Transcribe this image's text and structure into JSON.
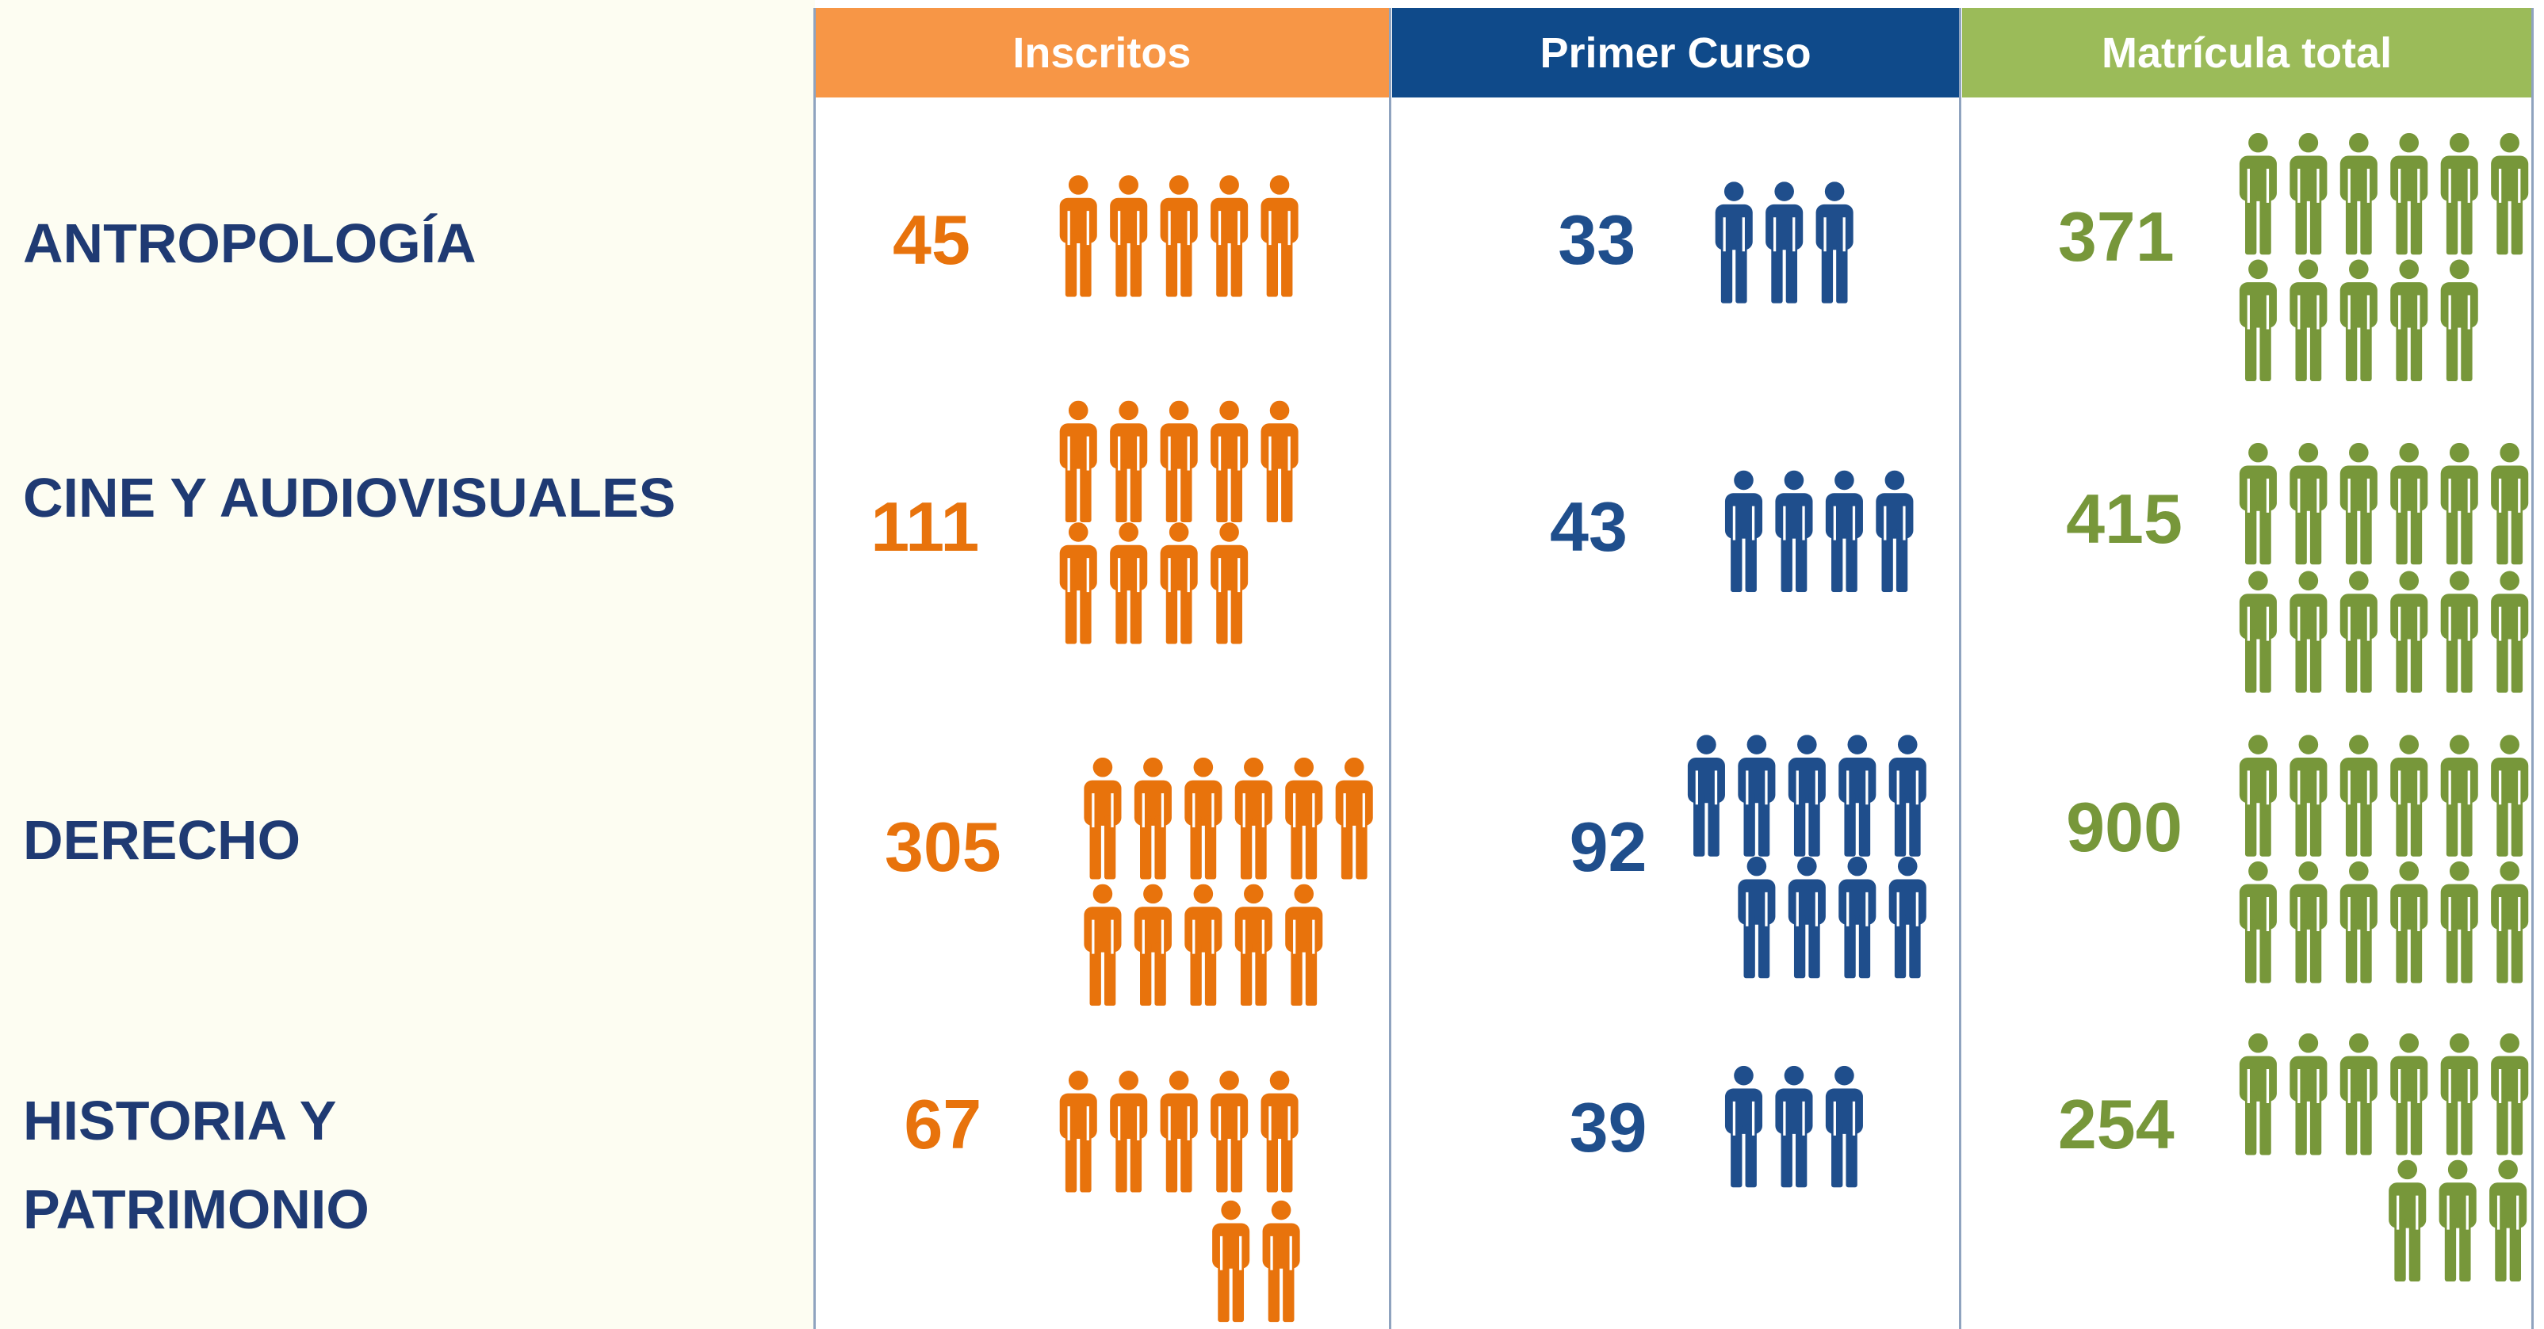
{
  "columns": [
    "Inscritos",
    "Primer Curso",
    "Matrícula total"
  ],
  "rows": [
    {
      "label": "ANTROPOLOGÍA",
      "values": [
        45,
        33,
        371
      ]
    },
    {
      "label": "CINE Y AUDIOVISUALES",
      "values": [
        111,
        43,
        415
      ]
    },
    {
      "label": "DERECHO",
      "values": [
        305,
        92,
        900
      ]
    },
    {
      "label": "HISTORIA Y PATRIMONIO",
      "values": [
        67,
        39,
        254
      ]
    }
  ]
}
